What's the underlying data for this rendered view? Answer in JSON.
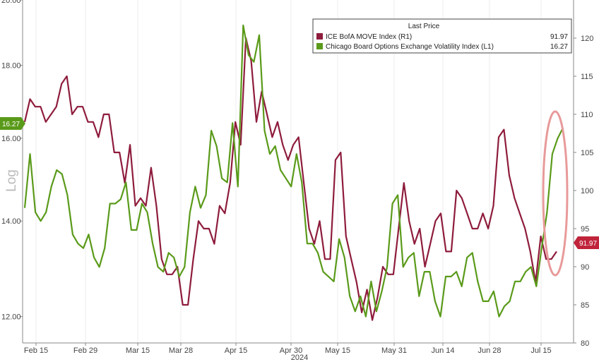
{
  "chart_data": {
    "type": "line",
    "left_axis_label": "Log",
    "legend": {
      "header": "Last Price",
      "entries": [
        {
          "name": "ICE BofA MOVE Index  (R1)",
          "last": "91.97",
          "color": "#8e1c3c"
        },
        {
          "name": "Chicago Board Options Exchange Volatility Index  (L1)",
          "last": "16.27",
          "color": "#5a9a1a"
        }
      ]
    },
    "x_tick_labels": [
      "Feb 15",
      "Feb 29",
      "Mar 15",
      "Mar 28",
      "Apr 15",
      "Apr 30",
      "May 15",
      "May 31",
      "Jun 14",
      "Jun 28",
      "Jul 15"
    ],
    "x_year_label": "2024",
    "left_axis": {
      "min": 11.5,
      "max": 20.0,
      "scale": "log",
      "ticks": [
        "20.00",
        "18.00",
        "16.00",
        "14.00",
        "12.00"
      ],
      "tick_values": [
        20,
        18,
        16,
        14,
        12
      ]
    },
    "right_axis": {
      "min": 80,
      "max": 125,
      "ticks": [
        "120",
        "115",
        "110",
        "105",
        "100",
        "95",
        "90",
        "85",
        "80"
      ],
      "tick_values": [
        120,
        115,
        110,
        105,
        100,
        95,
        90,
        85,
        80
      ]
    },
    "last_value_tags": {
      "left": "16.27",
      "right": "91.97"
    },
    "series": [
      {
        "name": "ICE BofA MOVE Index  (R1)",
        "axis": "right",
        "color": "#8e1c3c",
        "values": [
          109,
          112,
          111,
          111,
          109,
          110,
          111,
          114,
          115,
          110,
          111,
          111,
          109,
          109,
          107,
          110,
          110,
          105,
          105,
          101,
          106,
          98,
          99,
          98,
          103,
          98,
          91,
          89,
          89,
          90,
          85,
          85,
          91,
          96,
          95,
          95,
          93,
          98,
          97,
          101,
          109,
          106,
          120,
          117,
          109,
          113,
          110,
          107,
          109,
          106,
          104,
          106,
          107,
          101,
          95,
          93,
          96,
          91,
          91,
          104,
          105,
          94,
          91,
          88,
          84,
          87,
          83,
          86,
          90,
          89,
          89,
          95,
          101,
          96,
          93,
          95,
          90,
          93,
          96,
          97,
          92,
          92,
          100,
          99,
          97,
          95,
          95,
          97,
          95,
          98,
          107,
          108,
          102,
          99,
          97,
          95,
          92,
          88,
          94,
          91,
          91,
          92
        ],
        "x_start": "2024-02-12",
        "x_end": "2024-07-19"
      },
      {
        "name": "Chicago Board Options Exchange Volatility Index  (L1)",
        "axis": "left",
        "color": "#5a9a1a",
        "values": [
          14.3,
          15.6,
          14.2,
          14.0,
          14.2,
          14.8,
          15.2,
          15.1,
          14.6,
          13.7,
          13.5,
          13.4,
          13.7,
          13.2,
          13.0,
          13.4,
          14.4,
          14.4,
          14.5,
          14.9,
          13.8,
          13.8,
          14.4,
          14.2,
          13.5,
          13.0,
          12.9,
          13.3,
          13.2,
          12.8,
          13.0,
          14.2,
          14.8,
          14.3,
          14.6,
          16.2,
          15.8,
          15.0,
          14.9,
          16.4,
          14.8,
          19.2,
          18.3,
          18.1,
          18.9,
          16.2,
          15.6,
          15.8,
          15.2,
          15.0,
          14.8,
          15.6,
          14.9,
          13.5,
          13.5,
          13.3,
          12.9,
          12.8,
          12.7,
          13.6,
          13.2,
          12.4,
          12.1,
          12.4,
          12.0,
          12.7,
          12.1,
          12.5,
          13.0,
          14.4,
          14.6,
          13.0,
          13.2,
          13.3,
          12.4,
          12.9,
          12.9,
          12.3,
          12.0,
          12.8,
          12.8,
          12.9,
          12.6,
          13.2,
          13.3,
          12.7,
          12.3,
          12.3,
          12.5,
          12.0,
          12.2,
          12.3,
          12.7,
          12.7,
          12.9,
          13.0,
          12.6,
          13.4,
          14.2,
          15.6,
          16.0,
          16.27
        ]
      }
    ]
  }
}
